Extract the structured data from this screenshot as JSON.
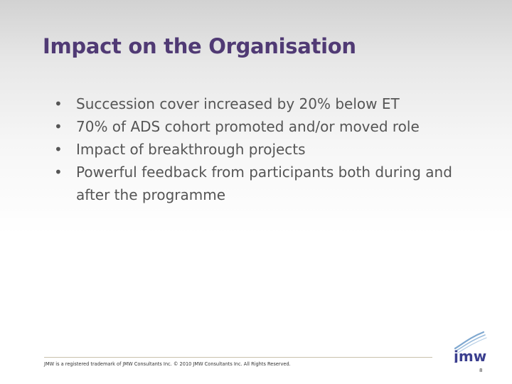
{
  "slide": {
    "title": "Impact on the Organisation",
    "bullet_glyph": "•",
    "bullets": [
      "Succession cover increased by 20% below ET",
      "70% of ADS cohort promoted and/or moved role",
      "Impact of breakthrough projects",
      "Powerful feedback from participants both during and after the programme"
    ]
  },
  "footer": {
    "text": "JMW is a registered trademark of JMW Consultants Inc. © 2010 JMW Consultants Inc. All Rights Reserved.",
    "page_number": "8"
  },
  "logo": {
    "wordmark": "jmw",
    "icon": "jmw-logo-icon",
    "colors": {
      "swoosh": "#7fa8d0",
      "wordmark": "#3b3f8f"
    }
  },
  "colors": {
    "title": "#503a74",
    "body_text": "#555555",
    "footer_line": "#c9c2ad"
  }
}
